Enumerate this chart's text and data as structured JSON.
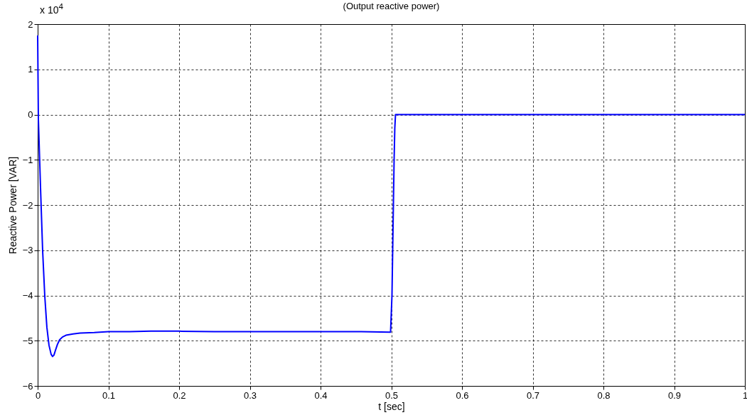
{
  "chart_data": {
    "type": "line",
    "title": "(Output reactive power)",
    "xlabel": "t [sec]",
    "ylabel": "Reactive Power [VAR]",
    "annotations": [
      "x 10$^{4}$"
    ],
    "series": [
      {
        "color": "#0000ff",
        "x": [
          0,
          0.001,
          0.002,
          0.004,
          0.007,
          0.01,
          0.013,
          0.016,
          0.019,
          0.021,
          0.023,
          0.025,
          0.028,
          0.031,
          0.035,
          0.04,
          0.05,
          0.06,
          0.08,
          0.1,
          0.13,
          0.16,
          0.2,
          0.25,
          0.3,
          0.35,
          0.4,
          0.45,
          0.499,
          0.501,
          0.502,
          0.503,
          0.504,
          0.505,
          0.506,
          0.52,
          0.6,
          0.8,
          1
        ],
        "values": [
          1.75,
          -0.1,
          -0.6,
          -1.6,
          -3.0,
          -4.0,
          -4.7,
          -5.1,
          -5.3,
          -5.35,
          -5.32,
          -5.22,
          -5.08,
          -4.98,
          -4.92,
          -4.88,
          -4.85,
          -4.83,
          -4.82,
          -4.8,
          -4.8,
          -4.79,
          -4.79,
          -4.8,
          -4.8,
          -4.8,
          -4.8,
          -4.8,
          -4.81,
          -4.0,
          -3.0,
          -2.0,
          -1.0,
          -0.3,
          0,
          0,
          0,
          0,
          0
        ]
      }
    ],
    "xlim": [
      0,
      1
    ],
    "ylim": [
      -6,
      2
    ],
    "xticks": [
      0,
      0.1,
      0.2,
      0.3,
      0.4,
      0.5,
      0.6,
      0.7,
      0.8,
      0.9,
      1
    ],
    "yticks": [
      -6,
      -5,
      -4,
      -3,
      -2,
      -1,
      0,
      1,
      2
    ],
    "grid": true,
    "line_style": "solid"
  }
}
